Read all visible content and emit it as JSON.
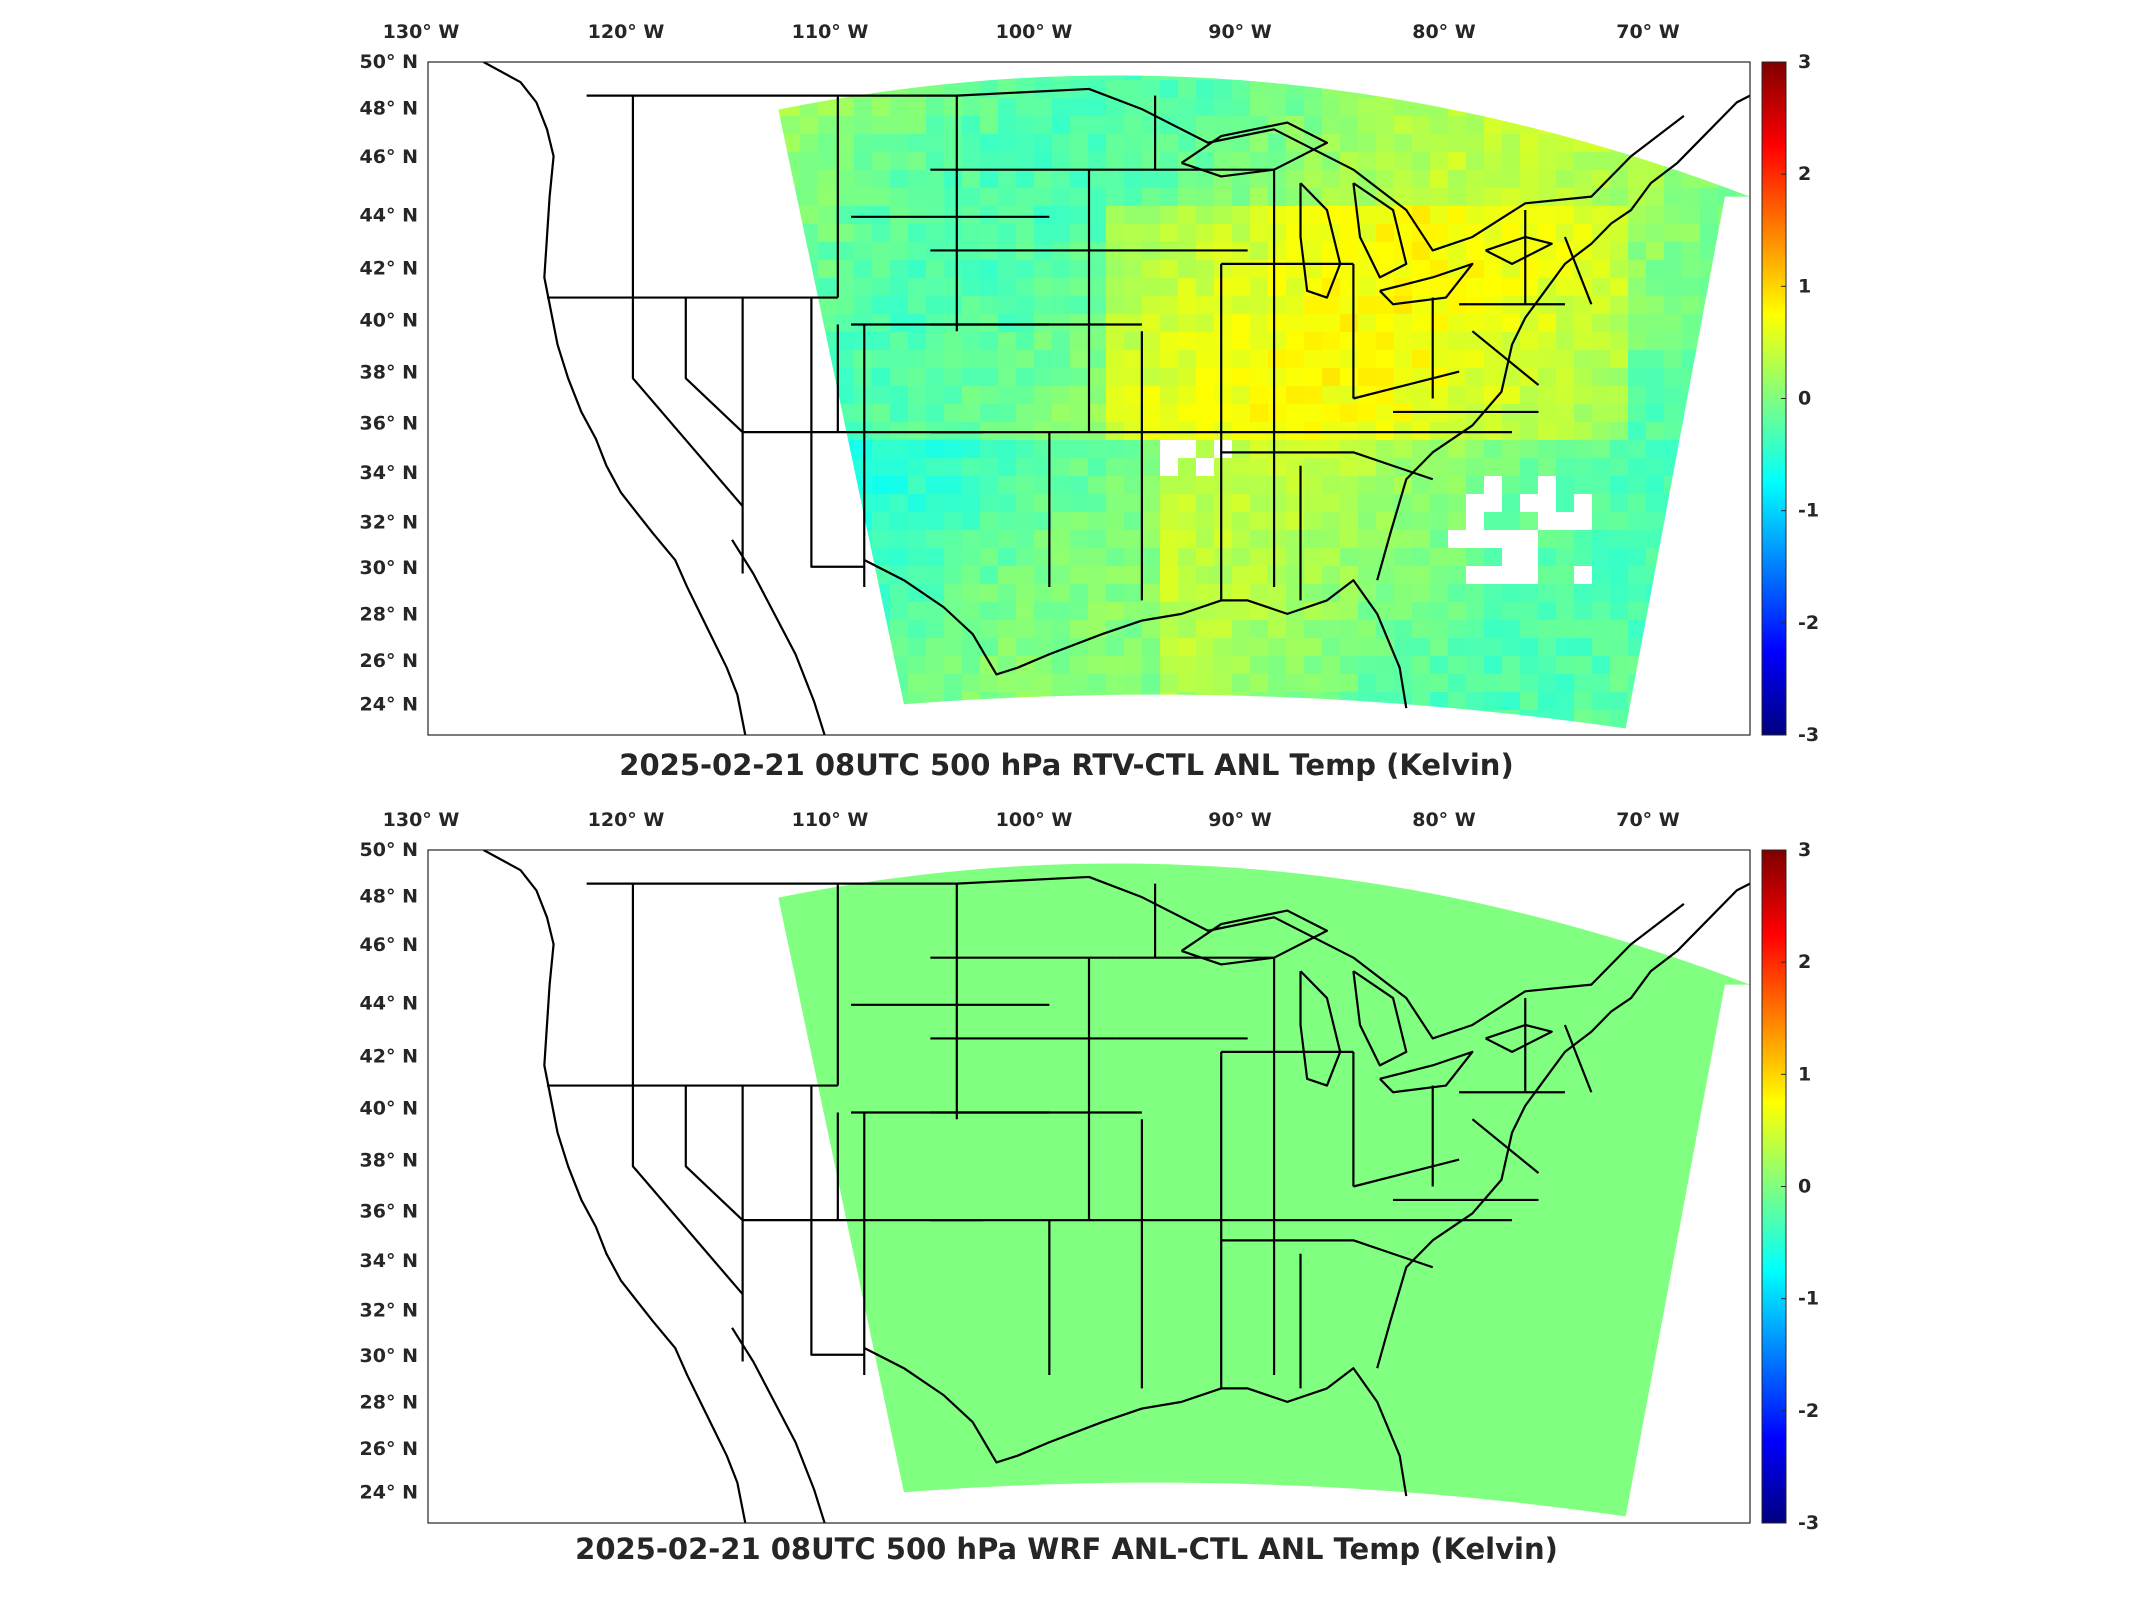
{
  "panels": [
    {
      "title": "2025-02-21 08UTC 500 hPa RTV-CTL ANL Temp (Kelvin)",
      "field": "noisy"
    },
    {
      "title": "2025-02-21 08UTC 500 hPa WRF ANL-CTL ANL Temp (Kelvin)",
      "field": "flat"
    }
  ],
  "lon_ticks": [
    "130",
    "120",
    "110",
    "100",
    "90",
    "80",
    "70"
  ],
  "lon_hemisphere": "W",
  "lat_ticks": [
    "50",
    "48",
    "46",
    "44",
    "42",
    "40",
    "38",
    "36",
    "34",
    "32",
    "30",
    "28",
    "26",
    "24"
  ],
  "lat_hemisphere": "N",
  "colorbar": {
    "ticks": [
      "3",
      "2",
      "1",
      "0",
      "-1",
      "-2",
      "-3"
    ],
    "range": [
      -3,
      3
    ],
    "colormap": [
      "#00007f",
      "#0000ff",
      "#007fff",
      "#00ffff",
      "#7fff7f",
      "#ffff00",
      "#ff7f00",
      "#ff0000",
      "#7f0000"
    ]
  },
  "colors": {
    "field_flat": "#80ff80",
    "coastline": "#000000"
  }
}
